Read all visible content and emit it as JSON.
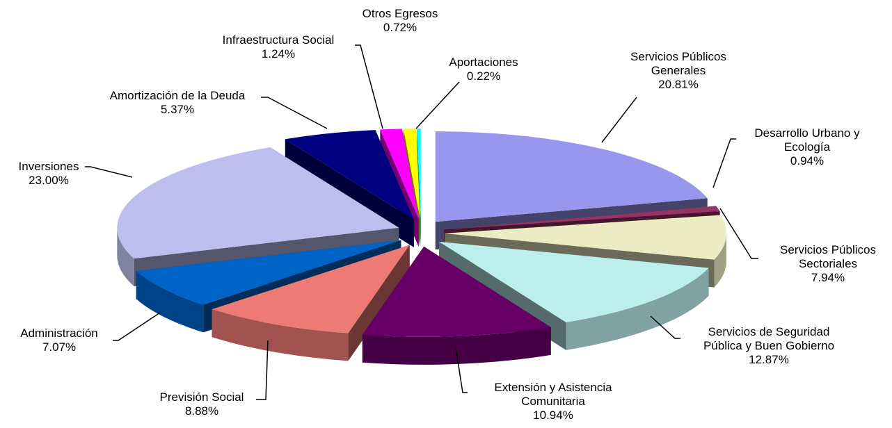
{
  "chart_data": {
    "type": "pie3d",
    "categories": [
      "Servicios Públicos Generales",
      "Desarrollo Urbano y Ecología",
      "Servicios Públicos Sectoriales",
      "Servicios de Seguridad Pública y Buen Gobierno",
      "Extensión y Asistencia Comunitaria",
      "Previsión Social",
      "Administración",
      "Inversiones",
      "Amortización de la Deuda",
      "Infraestructura Social",
      "Otros Egresos",
      "Aportaciones"
    ],
    "values": [
      20.81,
      0.94,
      7.94,
      12.87,
      10.94,
      8.88,
      7.07,
      23.0,
      5.37,
      1.24,
      0.72,
      0.22
    ],
    "value_labels": [
      "20.81%",
      "0.94%",
      "7.94%",
      "12.87%",
      "10.94%",
      "8.88%",
      "7.07%",
      "23.00%",
      "5.37%",
      "1.24%",
      "0.72%",
      "0.22%"
    ],
    "colors": [
      "#9797ee",
      "#993366",
      "#ececc4",
      "#bdeeee",
      "#660066",
      "#ee7a76",
      "#0063c8",
      "#bdbdee",
      "#000080",
      "#ff00ff",
      "#ffff00",
      "#00ffff"
    ]
  }
}
